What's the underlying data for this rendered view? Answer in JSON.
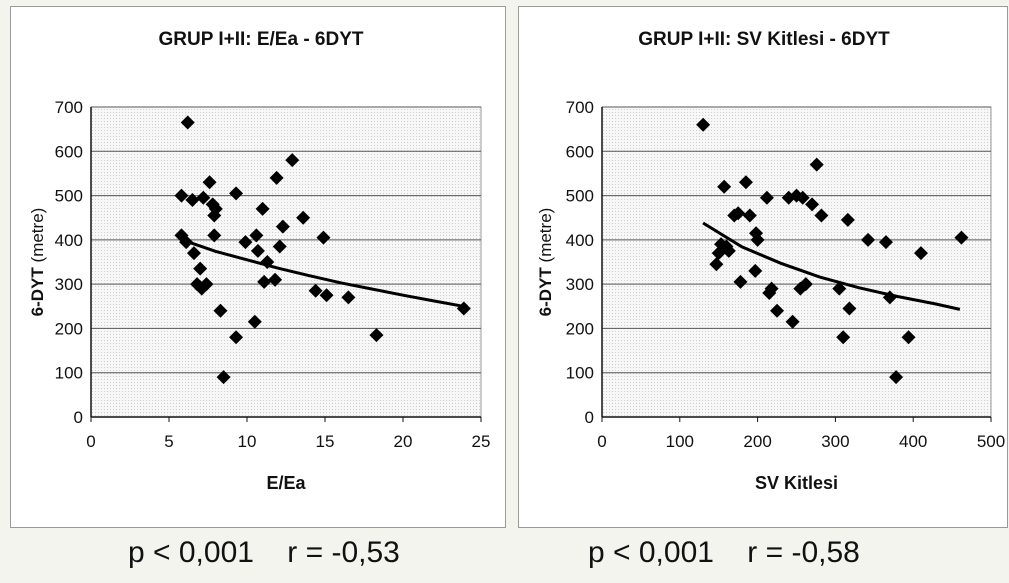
{
  "chart_data": [
    {
      "type": "scatter",
      "title": "GRUP I+II: E/Ea - 6DYT",
      "xlabel": "E/Ea",
      "ylabel": "6-DYT (metre)",
      "xlim": [
        0,
        25
      ],
      "ylim": [
        0,
        700
      ],
      "xticks": [
        "0",
        "5",
        "10",
        "15",
        "20",
        "25"
      ],
      "yticks": [
        "0",
        "100",
        "200",
        "300",
        "400",
        "500",
        "600",
        "700"
      ],
      "grid": true,
      "legend": "none",
      "marker": "diamond",
      "marker_color": "#000000",
      "points": [
        [
          6.2,
          665
        ],
        [
          5.8,
          500
        ],
        [
          6.5,
          490
        ],
        [
          7.2,
          495
        ],
        [
          7.6,
          530
        ],
        [
          7.8,
          480
        ],
        [
          8.0,
          470
        ],
        [
          7.9,
          455
        ],
        [
          5.8,
          410
        ],
        [
          6.1,
          395
        ],
        [
          6.6,
          370
        ],
        [
          7.0,
          335
        ],
        [
          6.8,
          300
        ],
        [
          7.1,
          290
        ],
        [
          7.4,
          300
        ],
        [
          7.9,
          410
        ],
        [
          8.3,
          240
        ],
        [
          8.5,
          90
        ],
        [
          9.3,
          505
        ],
        [
          9.3,
          180
        ],
        [
          9.9,
          395
        ],
        [
          10.5,
          215
        ],
        [
          10.6,
          410
        ],
        [
          10.7,
          375
        ],
        [
          11.0,
          470
        ],
        [
          11.3,
          350
        ],
        [
          11.1,
          305
        ],
        [
          11.9,
          540
        ],
        [
          12.3,
          430
        ],
        [
          12.1,
          385
        ],
        [
          11.8,
          310
        ],
        [
          12.9,
          580
        ],
        [
          13.6,
          450
        ],
        [
          14.4,
          285
        ],
        [
          14.9,
          405
        ],
        [
          15.1,
          275
        ],
        [
          16.5,
          270
        ],
        [
          18.3,
          185
        ],
        [
          23.9,
          245
        ]
      ],
      "trendline": {
        "type": "power",
        "x": [
          6,
          8,
          10,
          12,
          14,
          16,
          18,
          20,
          22,
          24
        ],
        "y": [
          398,
          374,
          355,
          336,
          319,
          303,
          289,
          275,
          262,
          249
        ]
      }
    },
    {
      "type": "scatter",
      "title": "GRUP I+II: SV Kitlesi - 6DYT",
      "xlabel": "SV Kitlesi",
      "ylabel": "6-DYT (metre)",
      "xlim": [
        0,
        500
      ],
      "ylim": [
        0,
        700
      ],
      "xticks": [
        "0",
        "100",
        "200",
        "300",
        "400",
        "500"
      ],
      "yticks": [
        "0",
        "100",
        "200",
        "300",
        "400",
        "500",
        "600",
        "700"
      ],
      "grid": true,
      "legend": "none",
      "marker": "diamond",
      "marker_color": "#000000",
      "points": [
        [
          130,
          660
        ],
        [
          147,
          345
        ],
        [
          150,
          370
        ],
        [
          153,
          390
        ],
        [
          157,
          520
        ],
        [
          160,
          385
        ],
        [
          163,
          375
        ],
        [
          170,
          455
        ],
        [
          175,
          460
        ],
        [
          178,
          305
        ],
        [
          185,
          530
        ],
        [
          190,
          455
        ],
        [
          197,
          330
        ],
        [
          198,
          415
        ],
        [
          200,
          400
        ],
        [
          212,
          495
        ],
        [
          215,
          280
        ],
        [
          218,
          290
        ],
        [
          225,
          240
        ],
        [
          240,
          495
        ],
        [
          245,
          215
        ],
        [
          250,
          500
        ],
        [
          255,
          290
        ],
        [
          258,
          495
        ],
        [
          262,
          300
        ],
        [
          270,
          480
        ],
        [
          276,
          570
        ],
        [
          282,
          455
        ],
        [
          305,
          290
        ],
        [
          310,
          180
        ],
        [
          316,
          445
        ],
        [
          318,
          245
        ],
        [
          342,
          400
        ],
        [
          365,
          395
        ],
        [
          370,
          270
        ],
        [
          378,
          90
        ],
        [
          394,
          180
        ],
        [
          410,
          370
        ],
        [
          462,
          405
        ]
      ],
      "trendline": {
        "type": "power",
        "x": [
          130,
          180,
          230,
          280,
          330,
          380,
          430,
          460
        ],
        "y": [
          438,
          384,
          347,
          316,
          292,
          272,
          255,
          243
        ]
      }
    }
  ],
  "stats": [
    {
      "p": "p < 0,001",
      "r": "r = -0,53"
    },
    {
      "p": "p < 0,001",
      "r": "r = -0,58"
    }
  ]
}
